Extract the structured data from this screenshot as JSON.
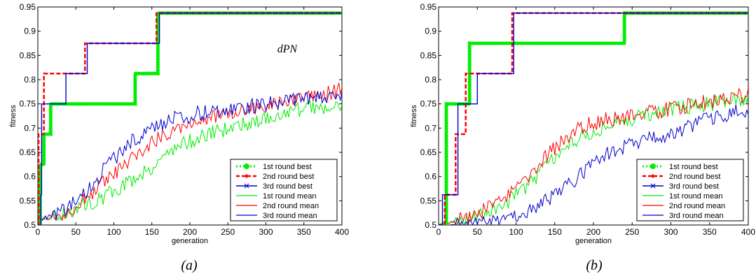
{
  "colors": {
    "round1": "#00ee00",
    "round2": "#ff0000",
    "round3": "#0000cc"
  },
  "chart_data": [
    {
      "type": "line",
      "caption": "(a)",
      "annotation": "dPN",
      "xlabel": "generation",
      "ylabel": "fitness",
      "xlim": [
        0,
        400
      ],
      "ylim": [
        0.5,
        0.95
      ],
      "xticks": [
        0,
        50,
        100,
        150,
        200,
        250,
        300,
        350,
        400
      ],
      "yticks": [
        0.5,
        0.55,
        0.6,
        0.65,
        0.7,
        0.75,
        0.8,
        0.85,
        0.9,
        0.95
      ],
      "grid": false,
      "legend_position": "bottom-right",
      "series": [
        {
          "name": "1st round best",
          "kind": "best",
          "style": "dotted-marker",
          "steps": [
            [
              0,
              0.5
            ],
            [
              3,
              0.625
            ],
            [
              8,
              0.6875
            ],
            [
              17,
              0.75
            ],
            [
              128,
              0.8125
            ],
            [
              158,
              0.9375
            ],
            [
              400,
              0.9375
            ]
          ]
        },
        {
          "name": "2nd round best",
          "kind": "best",
          "style": "dashed",
          "steps": [
            [
              0,
              0.5
            ],
            [
              1,
              0.6875
            ],
            [
              8,
              0.8125
            ],
            [
              62,
              0.875
            ],
            [
              156,
              0.9375
            ],
            [
              400,
              0.9375
            ]
          ]
        },
        {
          "name": "3rd round best",
          "kind": "best",
          "style": "solid-x",
          "steps": [
            [
              0,
              0.5
            ],
            [
              4,
              0.5625
            ],
            [
              5,
              0.75
            ],
            [
              37,
              0.8125
            ],
            [
              65,
              0.875
            ],
            [
              160,
              0.9375
            ],
            [
              400,
              0.9375
            ]
          ]
        },
        {
          "name": "1st round mean",
          "kind": "mean",
          "x": [
            0,
            30,
            60,
            90,
            120,
            150,
            180,
            210,
            250,
            300,
            350,
            400
          ],
          "y": [
            0.51,
            0.52,
            0.54,
            0.56,
            0.59,
            0.62,
            0.66,
            0.68,
            0.7,
            0.72,
            0.74,
            0.75
          ]
        },
        {
          "name": "2nd round mean",
          "kind": "mean",
          "x": [
            0,
            30,
            60,
            90,
            120,
            150,
            180,
            210,
            250,
            300,
            350,
            400
          ],
          "y": [
            0.51,
            0.52,
            0.55,
            0.59,
            0.63,
            0.67,
            0.7,
            0.715,
            0.73,
            0.745,
            0.76,
            0.78
          ]
        },
        {
          "name": "3rd round mean",
          "kind": "mean",
          "x": [
            0,
            30,
            60,
            90,
            120,
            150,
            180,
            210,
            250,
            300,
            350,
            400
          ],
          "y": [
            0.51,
            0.525,
            0.56,
            0.62,
            0.67,
            0.7,
            0.72,
            0.73,
            0.74,
            0.75,
            0.76,
            0.765
          ]
        }
      ]
    },
    {
      "type": "line",
      "caption": "(b)",
      "xlabel": "generation",
      "ylabel": "fitness",
      "xlim": [
        0,
        400
      ],
      "ylim": [
        0.5,
        0.95
      ],
      "xticks": [
        0,
        50,
        100,
        150,
        200,
        250,
        300,
        350,
        400
      ],
      "yticks": [
        0.5,
        0.55,
        0.6,
        0.65,
        0.7,
        0.75,
        0.8,
        0.85,
        0.9,
        0.95
      ],
      "grid": false,
      "legend_position": "bottom-right",
      "series": [
        {
          "name": "1st round best",
          "kind": "best",
          "style": "dotted-marker",
          "steps": [
            [
              0,
              0.5
            ],
            [
              10,
              0.75
            ],
            [
              40,
              0.875
            ],
            [
              240,
              0.9375
            ],
            [
              400,
              0.9375
            ]
          ]
        },
        {
          "name": "2nd round best",
          "kind": "best",
          "style": "dashed",
          "steps": [
            [
              0,
              0.5
            ],
            [
              8,
              0.5625
            ],
            [
              22,
              0.6875
            ],
            [
              35,
              0.8125
            ],
            [
              42,
              0.8125
            ],
            [
              95,
              0.9375
            ],
            [
              400,
              0.9375
            ]
          ]
        },
        {
          "name": "3rd round best",
          "kind": "best",
          "style": "solid-x",
          "steps": [
            [
              0,
              0.5
            ],
            [
              5,
              0.5625
            ],
            [
              25,
              0.75
            ],
            [
              50,
              0.8125
            ],
            [
              97,
              0.9375
            ],
            [
              400,
              0.9375
            ]
          ]
        },
        {
          "name": "1st round mean",
          "kind": "mean",
          "x": [
            0,
            30,
            60,
            90,
            120,
            150,
            180,
            210,
            250,
            300,
            350,
            400
          ],
          "y": [
            0.5,
            0.51,
            0.525,
            0.55,
            0.59,
            0.64,
            0.68,
            0.7,
            0.72,
            0.74,
            0.75,
            0.76
          ]
        },
        {
          "name": "2nd round mean",
          "kind": "mean",
          "x": [
            0,
            30,
            60,
            90,
            120,
            150,
            180,
            210,
            250,
            300,
            350,
            400
          ],
          "y": [
            0.5,
            0.515,
            0.53,
            0.56,
            0.61,
            0.66,
            0.7,
            0.715,
            0.725,
            0.74,
            0.755,
            0.77
          ]
        },
        {
          "name": "3rd round mean",
          "kind": "mean",
          "x": [
            0,
            30,
            60,
            90,
            120,
            150,
            180,
            210,
            250,
            300,
            350,
            400
          ],
          "y": [
            0.5,
            0.5,
            0.505,
            0.51,
            0.53,
            0.56,
            0.6,
            0.64,
            0.67,
            0.69,
            0.72,
            0.74
          ]
        }
      ]
    }
  ]
}
